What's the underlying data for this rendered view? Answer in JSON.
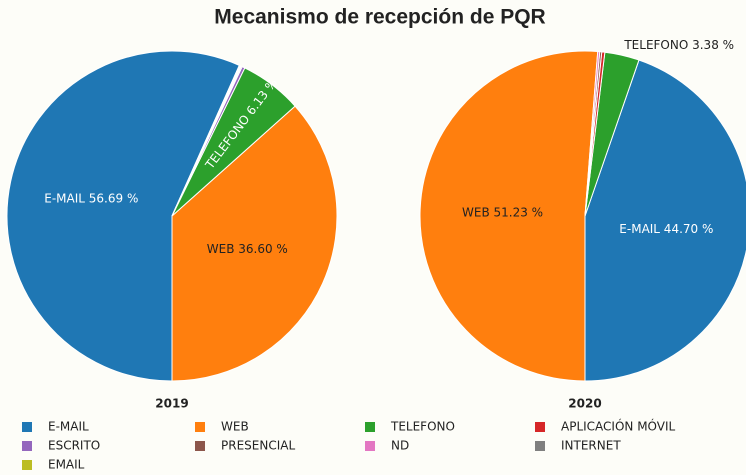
{
  "title": "Mecanismo de recepción de PQR",
  "chart_data": [
    {
      "type": "pie",
      "title": "2019",
      "categories": [
        "E-MAIL",
        "WEB",
        "TELEFONO",
        "APLICACIÓN MÓVIL",
        "ESCRITO",
        "PRESENCIAL",
        "ND",
        "INTERNET",
        "EMAIL"
      ],
      "values": [
        56.69,
        36.6,
        6.13,
        0,
        0.28,
        0.1,
        0.1,
        0.1,
        0
      ],
      "value_labels": [
        "E-MAIL 56.69 %",
        "WEB 36.60 %",
        "TELEFONO  6.13 %",
        null,
        null,
        null,
        null,
        null,
        null
      ],
      "colors": [
        "#1f77b4",
        "#ff7f0e",
        "#2ca02c",
        "#d62728",
        "#9467bd",
        "#8c564b",
        "#e377c2",
        "#7f7f7f",
        "#bcbd22"
      ]
    },
    {
      "type": "pie",
      "title": "2020",
      "categories": [
        "WEB",
        "E-MAIL",
        "TELEFONO",
        "APLICACIÓN MÓVIL",
        "PRESENCIAL",
        "ND",
        "ESCRITO",
        "INTERNET",
        "EMAIL"
      ],
      "values": [
        51.23,
        44.7,
        3.38,
        0.3,
        0.2,
        0.19,
        0,
        0,
        0
      ],
      "value_labels": [
        "WEB 51.23 %",
        "E-MAIL 44.70 %",
        "TELEFONO  3.38 %",
        null,
        null,
        null,
        null,
        null,
        null
      ],
      "colors": [
        "#ff7f0e",
        "#1f77b4",
        "#2ca02c",
        "#d62728",
        "#8c564b",
        "#e377c2",
        "#9467bd",
        "#7f7f7f",
        "#bcbd22"
      ]
    }
  ]
}
